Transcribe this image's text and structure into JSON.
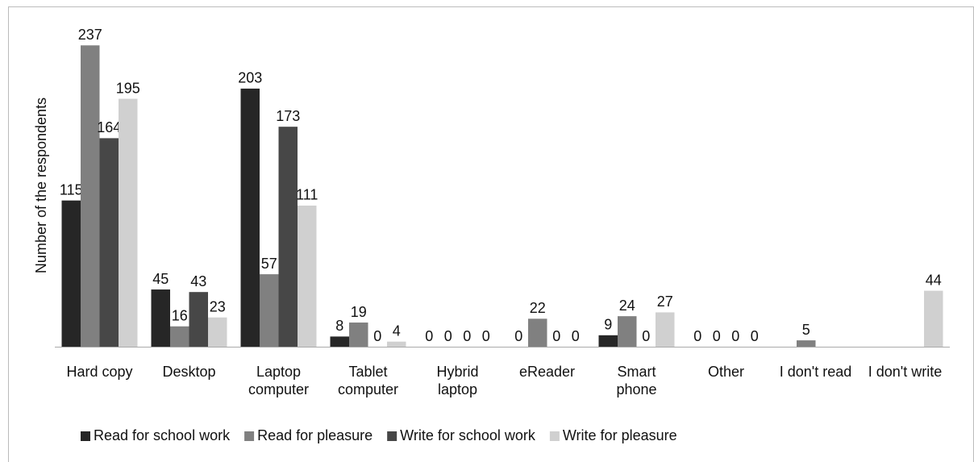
{
  "chart_data": {
    "type": "bar",
    "y_label": "Number of the respondents",
    "categories": [
      "Hard copy",
      "Desktop",
      "Laptop computer",
      "Tablet computer",
      "Hybrid laptop",
      "eReader",
      "Smart phone",
      "Other",
      "I don't read",
      "I don't write"
    ],
    "series": [
      {
        "name": "Read for school work",
        "color": "#262626",
        "values": [
          115,
          45,
          203,
          8,
          0,
          0,
          9,
          0,
          null,
          null
        ]
      },
      {
        "name": "Read for pleasure",
        "color": "#808080",
        "values": [
          237,
          16,
          57,
          19,
          0,
          22,
          24,
          0,
          5,
          null
        ]
      },
      {
        "name": "Write for school work",
        "color": "#474747",
        "values": [
          164,
          43,
          173,
          0,
          0,
          0,
          0,
          0,
          null,
          null
        ]
      },
      {
        "name": "Write for pleasure",
        "color": "#d0d0d0",
        "values": [
          195,
          23,
          111,
          4,
          0,
          0,
          27,
          0,
          null,
          44
        ]
      }
    ],
    "ylim": [
      0,
      260
    ],
    "legend": "bottom"
  }
}
